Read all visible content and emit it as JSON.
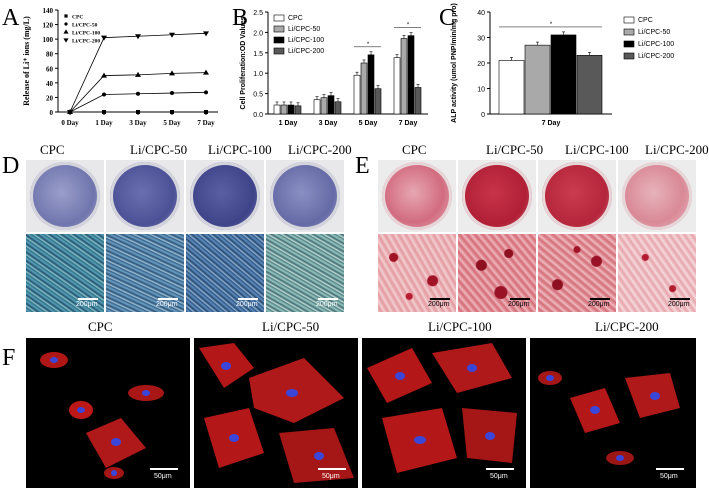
{
  "panel_letters": {
    "A": "A",
    "B": "B",
    "C": "C",
    "D": "D",
    "E": "E",
    "F": "F"
  },
  "chart_data": [
    {
      "panel": "A",
      "type": "line",
      "ylabel": "Release of Li⁺ ions (mg/L)",
      "x": [
        "0 Day",
        "1 Day",
        "3 Day",
        "5 Day",
        "7 Day"
      ],
      "yticks": [
        0,
        20,
        40,
        60,
        80,
        100,
        120,
        140
      ],
      "ylim": [
        0,
        140
      ],
      "legend_position": "top-left",
      "series": [
        {
          "name": "CPC",
          "marker": "square",
          "values": [
            0,
            0,
            0,
            0,
            0
          ]
        },
        {
          "name": "Li/CPC-50",
          "marker": "circle",
          "values": [
            0,
            24,
            25,
            26,
            27
          ]
        },
        {
          "name": "Li/CPC-100",
          "marker": "triangle-up",
          "values": [
            0,
            50,
            51,
            53,
            54
          ]
        },
        {
          "name": "Li/CPC-200",
          "marker": "triangle-down",
          "values": [
            0,
            102,
            104,
            106,
            108
          ]
        }
      ]
    },
    {
      "panel": "B",
      "type": "bar",
      "ylabel": "Cell Proliferation:OD Values",
      "categories": [
        "1 Day",
        "3 Day",
        "5 Day",
        "7 Day"
      ],
      "yticks": [
        "0.0",
        "0.5",
        "1.0",
        "1.5",
        "2.0",
        "2.5"
      ],
      "ylim": [
        0,
        2.5
      ],
      "legend_position": "top-left",
      "significance_marker": "*",
      "series": [
        {
          "name": "CPC",
          "color": "#ffffff",
          "values": [
            0.22,
            0.35,
            0.95,
            1.38
          ]
        },
        {
          "name": "Li/CPC-50",
          "color": "#a9a9a9",
          "values": [
            0.22,
            0.4,
            1.25,
            1.85
          ]
        },
        {
          "name": "Li/CPC-100",
          "color": "#000000",
          "values": [
            0.22,
            0.45,
            1.45,
            1.92
          ]
        },
        {
          "name": "Li/CPC-200",
          "color": "#595959",
          "values": [
            0.2,
            0.3,
            0.62,
            0.65
          ]
        }
      ]
    },
    {
      "panel": "C",
      "type": "bar",
      "ylabel": "ALP activity (umol PNP/min/mg pro)",
      "categories": [
        "7 Day"
      ],
      "yticks": [
        "0",
        "10",
        "20",
        "30",
        "40"
      ],
      "ylim": [
        0,
        40
      ],
      "legend_position": "right",
      "significance_marker": "*",
      "series": [
        {
          "name": "CPC",
          "color": "#ffffff",
          "values": [
            21
          ]
        },
        {
          "name": "Li/CPC-50",
          "color": "#a9a9a9",
          "values": [
            27
          ]
        },
        {
          "name": "Li/CPC-100",
          "color": "#000000",
          "values": [
            31
          ]
        },
        {
          "name": "Li/CPC-200",
          "color": "#595959",
          "values": [
            23
          ]
        }
      ]
    }
  ],
  "row_titles": {
    "D": [
      "CPC",
      "Li/CPC-50",
      "Li/CPC-100",
      "Li/CPC-200"
    ],
    "E": [
      "CPC",
      "Li/CPC-50",
      "Li/CPC-100",
      "Li/CPC-200"
    ],
    "F": [
      "CPC",
      "Li/CPC-50",
      "Li/CPC-100",
      "Li/CPC-200"
    ]
  },
  "scale_labels": {
    "D": "200μm",
    "E": "200μm",
    "F": "50μm"
  },
  "colors": {
    "alp_stain_well": "#b7b9d6",
    "alp_stain_dark": "#4a4f93",
    "ars_stain_well": "#c8364a",
    "ars_stain_pink": "#e9a5b0",
    "fluor_bg": "#000000",
    "fluor_cell": "#d21b1b",
    "fluor_nucleus": "#3b45d8"
  }
}
